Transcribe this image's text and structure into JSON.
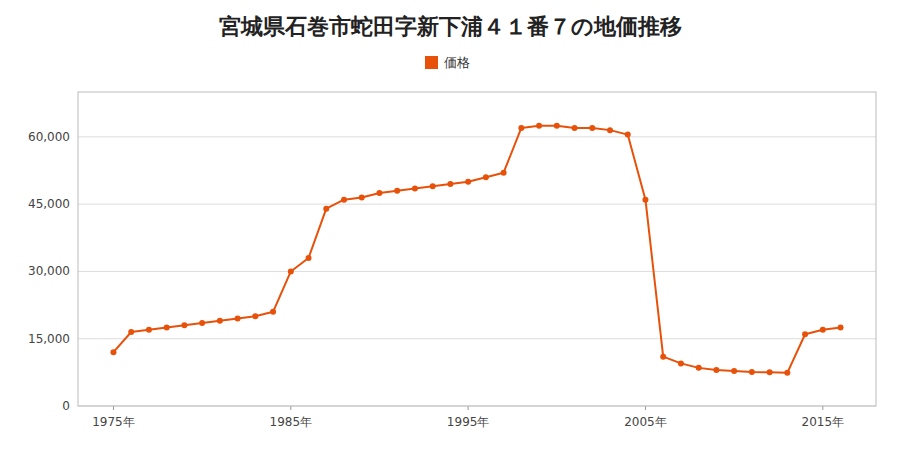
{
  "chart_data": {
    "type": "line",
    "title": "宮城県石巻市蛇田字新下浦４１番７の地価推移",
    "x": [
      1975,
      1976,
      1977,
      1978,
      1979,
      1980,
      1981,
      1982,
      1983,
      1984,
      1985,
      1986,
      1987,
      1988,
      1989,
      1990,
      1991,
      1992,
      1993,
      1994,
      1995,
      1996,
      1997,
      1998,
      1999,
      2000,
      2001,
      2002,
      2003,
      2004,
      2005,
      2006,
      2007,
      2008,
      2009,
      2010,
      2011,
      2012,
      2013,
      2014,
      2015,
      2016
    ],
    "xlim": [
      1973,
      2018
    ],
    "xticks": [
      {
        "value": 1975,
        "label": "1975年"
      },
      {
        "value": 1985,
        "label": "1985年"
      },
      {
        "value": 1995,
        "label": "1995年"
      },
      {
        "value": 2005,
        "label": "2005年"
      },
      {
        "value": 2015,
        "label": "2015年"
      }
    ],
    "ylim": [
      0,
      70000
    ],
    "yticks": [
      0,
      {
        "value": 15000,
        "label": "15,000"
      },
      {
        "value": 30000,
        "label": "30,000"
      },
      {
        "value": 45000,
        "label": "45,000"
      },
      {
        "value": 60000,
        "label": "60,000"
      }
    ],
    "grid": true,
    "legend": "top",
    "series": [
      {
        "name": "価格",
        "color": "#e8510a",
        "marker": "circle",
        "values": [
          12000,
          16500,
          17000,
          17500,
          18000,
          18500,
          19000,
          19500,
          20000,
          21000,
          30000,
          33000,
          44000,
          46000,
          46500,
          47500,
          48000,
          48500,
          49000,
          49500,
          50000,
          51000,
          52000,
          62000,
          62500,
          62500,
          62000,
          62000,
          61500,
          60500,
          46000,
          11000,
          9500,
          8500,
          8000,
          7800,
          7600,
          7500,
          7400,
          16000,
          17000,
          17500
        ]
      }
    ]
  }
}
